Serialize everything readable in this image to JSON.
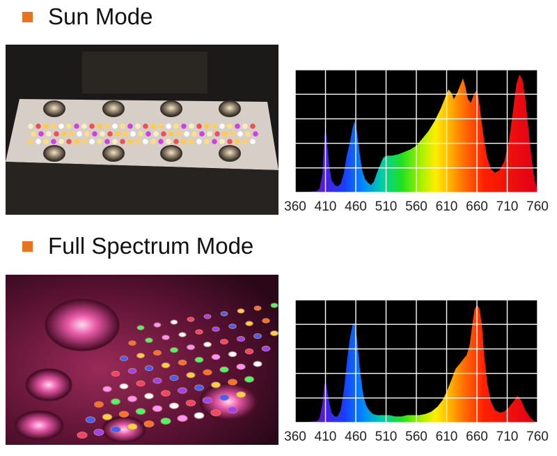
{
  "sections": [
    {
      "title": "Sun Mode"
    },
    {
      "title": "Full Spectrum Mode"
    }
  ],
  "colors": {
    "bullet": "#e8731c",
    "chart_background": "#000000",
    "grid": "#ffffff",
    "page_background": "#ffffff"
  },
  "chart_data": [
    {
      "type": "area",
      "title": "",
      "xlabel": "",
      "ylabel": "",
      "xlim": [
        360,
        760
      ],
      "ylim": [
        0,
        100
      ],
      "x_ticks": [
        "360",
        "410",
        "460",
        "510",
        "560",
        "610",
        "660",
        "710",
        "760"
      ],
      "grid": true,
      "fill": "wavelength-rainbow",
      "series": [
        {
          "points": [
            [
              360,
              0
            ],
            [
              395,
              1
            ],
            [
              400,
              3
            ],
            [
              405,
              15
            ],
            [
              408,
              45
            ],
            [
              410,
              52
            ],
            [
              412,
              44
            ],
            [
              416,
              22
            ],
            [
              420,
              10
            ],
            [
              425,
              6
            ],
            [
              430,
              5
            ],
            [
              435,
              7
            ],
            [
              440,
              15
            ],
            [
              445,
              30
            ],
            [
              450,
              40
            ],
            [
              455,
              53
            ],
            [
              458,
              58
            ],
            [
              462,
              49
            ],
            [
              466,
              33
            ],
            [
              470,
              19
            ],
            [
              475,
              11
            ],
            [
              480,
              8
            ],
            [
              485,
              6
            ],
            [
              490,
              9
            ],
            [
              495,
              16
            ],
            [
              500,
              22
            ],
            [
              505,
              28
            ],
            [
              510,
              30
            ],
            [
              520,
              30
            ],
            [
              530,
              31
            ],
            [
              540,
              33
            ],
            [
              550,
              35
            ],
            [
              560,
              38
            ],
            [
              570,
              44
            ],
            [
              580,
              50
            ],
            [
              590,
              58
            ],
            [
              600,
              68
            ],
            [
              608,
              78
            ],
            [
              613,
              84
            ],
            [
              618,
              81
            ],
            [
              622,
              76
            ],
            [
              628,
              82
            ],
            [
              633,
              88
            ],
            [
              637,
              93
            ],
            [
              641,
              86
            ],
            [
              645,
              76
            ],
            [
              650,
              73
            ],
            [
              655,
              80
            ],
            [
              660,
              84
            ],
            [
              663,
              76
            ],
            [
              667,
              60
            ],
            [
              672,
              42
            ],
            [
              677,
              28
            ],
            [
              683,
              19
            ],
            [
              690,
              16
            ],
            [
              697,
              18
            ],
            [
              705,
              25
            ],
            [
              713,
              42
            ],
            [
              720,
              68
            ],
            [
              725,
              88
            ],
            [
              730,
              96
            ],
            [
              735,
              92
            ],
            [
              740,
              76
            ],
            [
              745,
              52
            ],
            [
              750,
              28
            ],
            [
              755,
              10
            ],
            [
              760,
              2
            ]
          ]
        }
      ]
    },
    {
      "type": "area",
      "title": "",
      "xlabel": "",
      "ylabel": "",
      "xlim": [
        360,
        760
      ],
      "ylim": [
        0,
        100
      ],
      "x_ticks": [
        "360",
        "410",
        "460",
        "510",
        "560",
        "610",
        "660",
        "710",
        "760"
      ],
      "grid": true,
      "fill": "wavelength-rainbow",
      "series": [
        {
          "points": [
            [
              360,
              0
            ],
            [
              395,
              1
            ],
            [
              400,
              3
            ],
            [
              405,
              15
            ],
            [
              408,
              31
            ],
            [
              410,
              33
            ],
            [
              412,
              29
            ],
            [
              416,
              17
            ],
            [
              420,
              8
            ],
            [
              425,
              5
            ],
            [
              430,
              5
            ],
            [
              435,
              10
            ],
            [
              440,
              25
            ],
            [
              445,
              48
            ],
            [
              450,
              68
            ],
            [
              455,
              80
            ],
            [
              458,
              81
            ],
            [
              462,
              68
            ],
            [
              467,
              42
            ],
            [
              472,
              23
            ],
            [
              477,
              14
            ],
            [
              482,
              10
            ],
            [
              488,
              7
            ],
            [
              495,
              6
            ],
            [
              505,
              6
            ],
            [
              515,
              6
            ],
            [
              525,
              5
            ],
            [
              535,
              5
            ],
            [
              545,
              6
            ],
            [
              555,
              6
            ],
            [
              565,
              6
            ],
            [
              575,
              7
            ],
            [
              585,
              9
            ],
            [
              595,
              13
            ],
            [
              603,
              18
            ],
            [
              610,
              25
            ],
            [
              618,
              35
            ],
            [
              625,
              44
            ],
            [
              632,
              48
            ],
            [
              638,
              52
            ],
            [
              643,
              55
            ],
            [
              648,
              63
            ],
            [
              652,
              78
            ],
            [
              656,
              92
            ],
            [
              660,
              96
            ],
            [
              664,
              93
            ],
            [
              668,
              80
            ],
            [
              672,
              55
            ],
            [
              677,
              32
            ],
            [
              683,
              17
            ],
            [
              690,
              10
            ],
            [
              698,
              8
            ],
            [
              705,
              9
            ],
            [
              712,
              12
            ],
            [
              720,
              17
            ],
            [
              727,
              22
            ],
            [
              733,
              18
            ],
            [
              740,
              10
            ],
            [
              748,
              4
            ],
            [
              755,
              1
            ],
            [
              760,
              0
            ]
          ]
        }
      ]
    }
  ]
}
